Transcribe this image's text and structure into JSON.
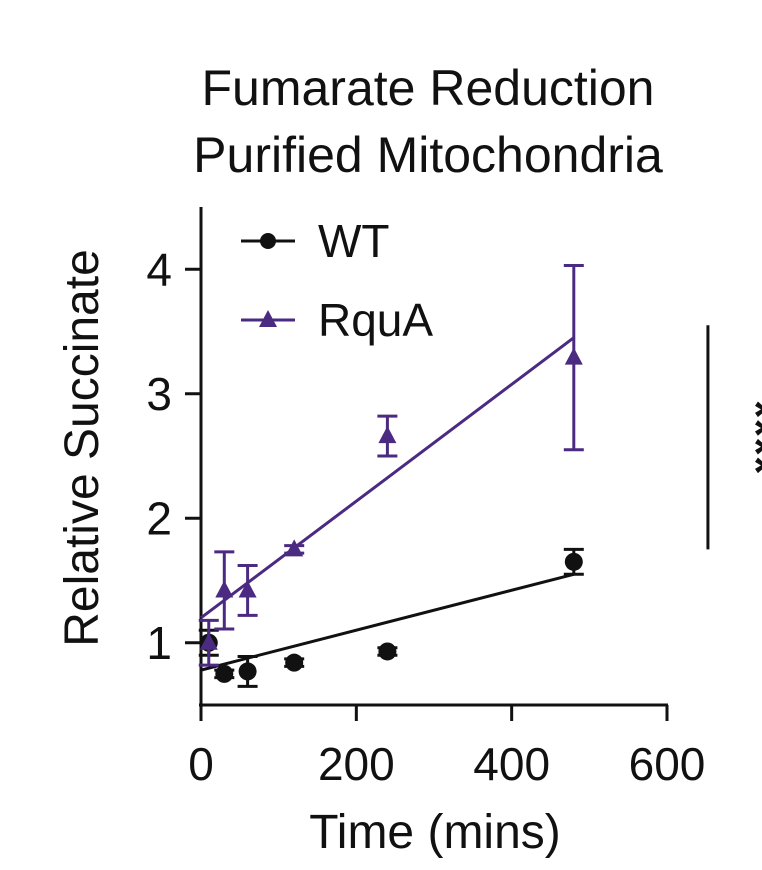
{
  "chart_data": {
    "type": "scatter",
    "title": [
      "Fumarate Reduction",
      "Purified Mitochondria"
    ],
    "xlabel": "Time (mins)",
    "ylabel": "Relative Succinate",
    "xlim": [
      0,
      600
    ],
    "ylim": [
      0.5,
      4.5
    ],
    "xticks": [
      0,
      200,
      400,
      600
    ],
    "xtick_labels": [
      "0",
      "200",
      "400",
      "600"
    ],
    "yticks": [
      1,
      2,
      3,
      4
    ],
    "ytick_labels": [
      "1",
      "2",
      "3",
      "4"
    ],
    "grid": false,
    "legend_position": "top-left",
    "series": [
      {
        "name": "WT",
        "color": "#111111",
        "marker": "circle",
        "x": [
          10,
          30,
          60,
          120,
          240,
          480
        ],
        "y": [
          1.0,
          0.75,
          0.77,
          0.84,
          0.93,
          1.65
        ],
        "err": [
          0.1,
          0.03,
          0.12,
          0.03,
          0.03,
          0.1
        ],
        "fit": {
          "x": [
            0,
            480
          ],
          "y": [
            0.78,
            1.55
          ]
        }
      },
      {
        "name": "RquA",
        "color": "#4b2a82",
        "marker": "triangle",
        "x": [
          10,
          30,
          60,
          120,
          240,
          480
        ],
        "y": [
          1.0,
          1.42,
          1.42,
          1.75,
          2.66,
          3.29
        ],
        "err": [
          0.18,
          0.31,
          0.2,
          0.03,
          0.16,
          0.74
        ],
        "fit": {
          "x": [
            0,
            480
          ],
          "y": [
            1.2,
            3.45
          ]
        }
      }
    ],
    "significance": {
      "label": "****",
      "y_range": [
        1.75,
        3.55
      ],
      "x": 560
    }
  }
}
